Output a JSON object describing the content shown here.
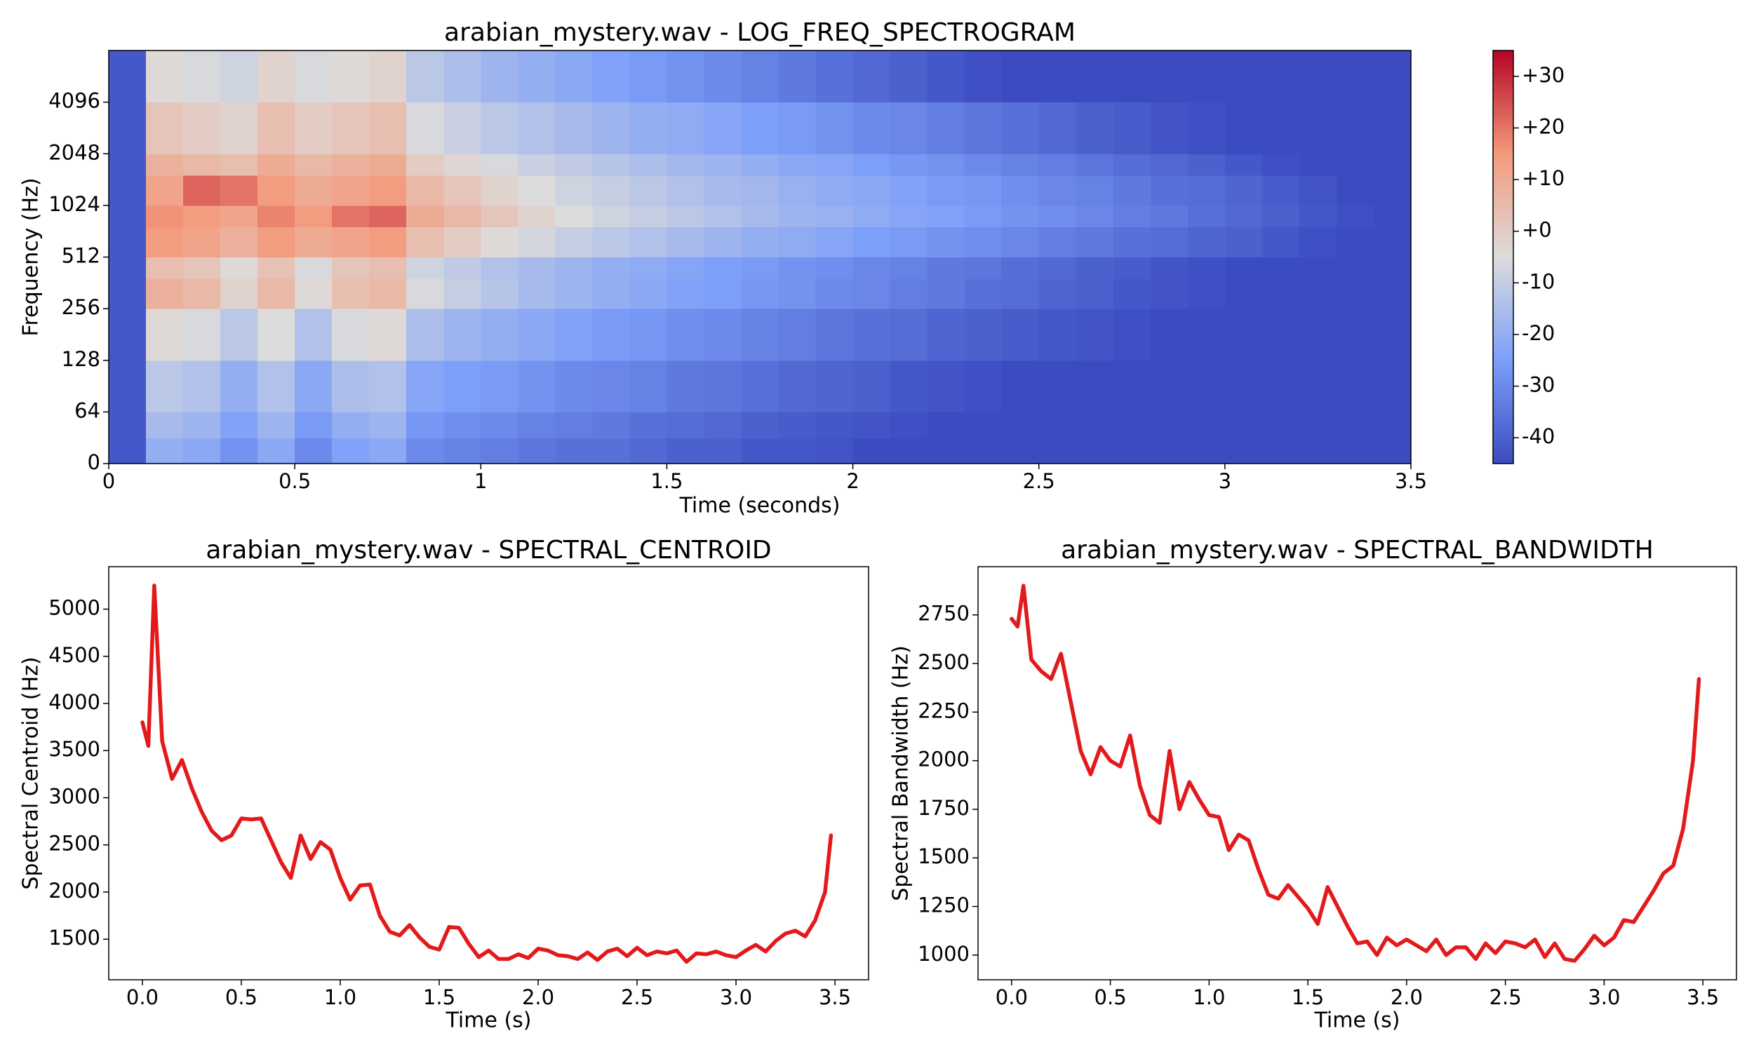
{
  "chart_data": [
    {
      "type": "heatmap",
      "title": "arabian_mystery.wav - LOG_FREQ_SPECTROGRAM",
      "xlabel": "Time (seconds)",
      "ylabel": "Frequency (Hz)",
      "yscale": "symlog",
      "linthresh": 64,
      "colormap": "coolwarm",
      "xlim": [
        0,
        3.5
      ],
      "ylim": [
        0,
        8192
      ],
      "xticks": [
        0,
        0.5,
        1,
        1.5,
        2,
        2.5,
        3,
        3.5
      ],
      "yticks": [
        0,
        64,
        128,
        256,
        512,
        1024,
        2048,
        4096
      ],
      "clim": [
        -45,
        35
      ],
      "cticks": [
        {
          "value": 30,
          "label": "+30"
        },
        {
          "value": 20,
          "label": "+20"
        },
        {
          "value": 10,
          "label": "+10"
        },
        {
          "value": 0,
          "label": "+0"
        },
        -10,
        -20,
        -30,
        -40
      ],
      "x_bins": [
        0,
        0.1,
        0.2,
        0.3,
        0.4,
        0.5,
        0.6,
        0.7,
        0.8,
        0.9,
        1,
        1.1,
        1.2,
        1.3,
        1.4,
        1.5,
        1.6,
        1.7,
        1.8,
        1.9,
        2,
        2.1,
        2.2,
        2.3,
        2.4,
        2.5,
        2.6,
        2.7,
        2.8,
        2.9,
        3,
        3.1,
        3.2,
        3.3,
        3.4,
        3.5
      ],
      "y_bins": [
        0,
        32,
        64,
        128,
        256,
        384,
        512,
        768,
        1024,
        1536,
        2048,
        4096,
        8192
      ],
      "z": [
        [
          -42,
          -20,
          -22,
          -28,
          -22,
          -30,
          -24,
          -22,
          -30,
          -32,
          -33,
          -35,
          -36,
          -36,
          -38,
          -40,
          -40,
          -42,
          -42,
          -43,
          -45,
          -45,
          -45,
          -45,
          -45,
          -45,
          -45,
          -45,
          -45,
          -45,
          -45,
          -45,
          -45,
          -45,
          -45
        ],
        [
          -42,
          -16,
          -18,
          -24,
          -18,
          -26,
          -20,
          -18,
          -27,
          -29,
          -30,
          -32,
          -33,
          -34,
          -36,
          -37,
          -38,
          -40,
          -41,
          -42,
          -43,
          -44,
          -45,
          -45,
          -45,
          -45,
          -45,
          -45,
          -45,
          -45,
          -45,
          -45,
          -45,
          -45,
          -45
        ],
        [
          -42,
          -12,
          -14,
          -20,
          -14,
          -22,
          -15,
          -14,
          -23,
          -25,
          -26,
          -28,
          -30,
          -31,
          -32,
          -34,
          -35,
          -36,
          -38,
          -39,
          -40,
          -42,
          -43,
          -44,
          -45,
          -45,
          -45,
          -45,
          -45,
          -45,
          -45,
          -45,
          -45,
          -45,
          -45
        ],
        [
          -42,
          -4,
          -6,
          -12,
          -5,
          -14,
          -6,
          -4,
          -15,
          -18,
          -20,
          -22,
          -24,
          -26,
          -27,
          -29,
          -30,
          -32,
          -33,
          -35,
          -36,
          -37,
          -39,
          -40,
          -41,
          -42,
          -43,
          -44,
          -45,
          -45,
          -45,
          -45,
          -45,
          -45,
          -45
        ],
        [
          -42,
          8,
          6,
          -2,
          6,
          -4,
          4,
          6,
          -6,
          -10,
          -13,
          -16,
          -18,
          -20,
          -22,
          -24,
          -25,
          -27,
          -28,
          -30,
          -31,
          -33,
          -34,
          -36,
          -37,
          -39,
          -40,
          -42,
          -43,
          -44,
          -45,
          -45,
          -45,
          -45,
          -45
        ],
        [
          -42,
          4,
          2,
          -4,
          3,
          -6,
          2,
          4,
          -8,
          -11,
          -14,
          -16,
          -18,
          -20,
          -21,
          -23,
          -25,
          -26,
          -28,
          -29,
          -31,
          -32,
          -34,
          -35,
          -37,
          -38,
          -40,
          -41,
          -43,
          -44,
          -45,
          -45,
          -45,
          -45,
          -45
        ],
        [
          -42,
          14,
          12,
          8,
          14,
          10,
          12,
          14,
          4,
          0,
          -4,
          -7,
          -10,
          -12,
          -14,
          -16,
          -18,
          -20,
          -21,
          -23,
          -25,
          -26,
          -28,
          -29,
          -31,
          -33,
          -34,
          -36,
          -37,
          -39,
          -40,
          -42,
          -44,
          -45,
          -45
        ],
        [
          -42,
          16,
          14,
          12,
          18,
          14,
          20,
          22,
          10,
          6,
          2,
          -2,
          -5,
          -8,
          -10,
          -12,
          -14,
          -16,
          -18,
          -19,
          -21,
          -23,
          -24,
          -26,
          -28,
          -29,
          -31,
          -33,
          -34,
          -36,
          -38,
          -40,
          -42,
          -44,
          -45
        ],
        [
          -42,
          12,
          22,
          20,
          14,
          10,
          12,
          14,
          6,
          2,
          -2,
          -5,
          -8,
          -10,
          -12,
          -14,
          -16,
          -17,
          -19,
          -21,
          -22,
          -24,
          -26,
          -27,
          -29,
          -31,
          -32,
          -34,
          -36,
          -37,
          -39,
          -41,
          -43,
          -45,
          -45
        ],
        [
          -42,
          8,
          6,
          4,
          10,
          6,
          8,
          10,
          0,
          -3,
          -6,
          -9,
          -11,
          -13,
          -15,
          -17,
          -18,
          -20,
          -22,
          -23,
          -25,
          -27,
          -28,
          -30,
          -32,
          -33,
          -35,
          -37,
          -38,
          -40,
          -42,
          -44,
          -45,
          -45,
          -45
        ],
        [
          -42,
          2,
          0,
          -2,
          4,
          0,
          2,
          4,
          -6,
          -9,
          -12,
          -14,
          -16,
          -18,
          -20,
          -21,
          -23,
          -25,
          -26,
          -28,
          -30,
          -31,
          -33,
          -35,
          -36,
          -38,
          -40,
          -41,
          -43,
          -44,
          -45,
          -45,
          -45,
          -45,
          -45
        ],
        [
          -42,
          -4,
          -6,
          -8,
          -2,
          -6,
          -4,
          -2,
          -12,
          -15,
          -18,
          -20,
          -22,
          -24,
          -26,
          -28,
          -30,
          -32,
          -34,
          -36,
          -38,
          -40,
          -42,
          -44,
          -45,
          -45,
          -45,
          -45,
          -45,
          -45,
          -45,
          -45,
          -45,
          -45,
          -45
        ]
      ]
    },
    {
      "type": "line",
      "title": "arabian_mystery.wav - SPECTRAL_CENTROID",
      "xlabel": "Time (s)",
      "ylabel": "Spectral Centroid (Hz)",
      "color": "#e31a1c",
      "xlim": [
        -0.17,
        3.67
      ],
      "ylim": [
        1070,
        5450
      ],
      "xticks": [
        {
          "value": 0,
          "label": "0.0"
        },
        0.5,
        {
          "value": 1,
          "label": "1.0"
        },
        1.5,
        {
          "value": 2,
          "label": "2.0"
        },
        2.5,
        {
          "value": 3,
          "label": "3.0"
        },
        3.5
      ],
      "yticks": [
        1500,
        2000,
        2500,
        3000,
        3500,
        4000,
        4500,
        5000
      ],
      "x": [
        0,
        0.03,
        0.06,
        0.1,
        0.15,
        0.2,
        0.25,
        0.3,
        0.35,
        0.4,
        0.45,
        0.5,
        0.55,
        0.6,
        0.65,
        0.7,
        0.75,
        0.8,
        0.85,
        0.9,
        0.95,
        1,
        1.05,
        1.1,
        1.15,
        1.2,
        1.25,
        1.3,
        1.35,
        1.4,
        1.45,
        1.5,
        1.55,
        1.6,
        1.65,
        1.7,
        1.75,
        1.8,
        1.85,
        1.9,
        1.95,
        2,
        2.05,
        2.1,
        2.15,
        2.2,
        2.25,
        2.3,
        2.35,
        2.4,
        2.45,
        2.5,
        2.55,
        2.6,
        2.65,
        2.7,
        2.75,
        2.8,
        2.85,
        2.9,
        2.95,
        3,
        3.05,
        3.1,
        3.15,
        3.2,
        3.25,
        3.3,
        3.35,
        3.4,
        3.45,
        3.48
      ],
      "values": [
        3800,
        3550,
        5250,
        3600,
        3200,
        3400,
        3100,
        2850,
        2650,
        2550,
        2600,
        2780,
        2770,
        2780,
        2550,
        2320,
        2150,
        2600,
        2350,
        2530,
        2450,
        2150,
        1920,
        2070,
        2080,
        1750,
        1580,
        1540,
        1650,
        1520,
        1420,
        1390,
        1630,
        1620,
        1450,
        1310,
        1380,
        1290,
        1290,
        1340,
        1300,
        1400,
        1380,
        1330,
        1320,
        1290,
        1360,
        1280,
        1370,
        1400,
        1320,
        1410,
        1330,
        1370,
        1350,
        1380,
        1260,
        1350,
        1340,
        1370,
        1330,
        1310,
        1380,
        1440,
        1370,
        1480,
        1560,
        1590,
        1530,
        1700,
        2000,
        2600
      ]
    },
    {
      "type": "line",
      "title": "arabian_mystery.wav - SPECTRAL_BANDWIDTH",
      "xlabel": "Time (s)",
      "ylabel": "Spectral Bandwidth (Hz)",
      "color": "#e31a1c",
      "xlim": [
        -0.17,
        3.67
      ],
      "ylim": [
        873,
        2998
      ],
      "xticks": [
        {
          "value": 0,
          "label": "0.0"
        },
        0.5,
        {
          "value": 1,
          "label": "1.0"
        },
        1.5,
        {
          "value": 2,
          "label": "2.0"
        },
        2.5,
        {
          "value": 3,
          "label": "3.0"
        },
        3.5
      ],
      "yticks": [
        1000,
        1250,
        1500,
        1750,
        2000,
        2250,
        2500,
        2750
      ],
      "x": [
        0,
        0.03,
        0.06,
        0.1,
        0.15,
        0.2,
        0.25,
        0.3,
        0.35,
        0.4,
        0.45,
        0.5,
        0.55,
        0.6,
        0.65,
        0.7,
        0.75,
        0.8,
        0.85,
        0.9,
        0.95,
        1,
        1.05,
        1.1,
        1.15,
        1.2,
        1.25,
        1.3,
        1.35,
        1.4,
        1.45,
        1.5,
        1.55,
        1.6,
        1.65,
        1.7,
        1.75,
        1.8,
        1.85,
        1.9,
        1.95,
        2,
        2.05,
        2.1,
        2.15,
        2.2,
        2.25,
        2.3,
        2.35,
        2.4,
        2.45,
        2.5,
        2.55,
        2.6,
        2.65,
        2.7,
        2.75,
        2.8,
        2.85,
        2.9,
        2.95,
        3,
        3.05,
        3.1,
        3.15,
        3.2,
        3.25,
        3.3,
        3.35,
        3.4,
        3.45,
        3.48
      ],
      "values": [
        2730,
        2690,
        2900,
        2520,
        2460,
        2420,
        2550,
        2300,
        2050,
        1930,
        2070,
        2000,
        1970,
        2130,
        1870,
        1720,
        1680,
        2050,
        1750,
        1890,
        1800,
        1720,
        1710,
        1540,
        1620,
        1590,
        1440,
        1310,
        1290,
        1360,
        1300,
        1240,
        1160,
        1350,
        1250,
        1150,
        1060,
        1070,
        1000,
        1090,
        1050,
        1080,
        1050,
        1020,
        1080,
        1000,
        1040,
        1040,
        980,
        1060,
        1010,
        1070,
        1060,
        1040,
        1080,
        990,
        1060,
        980,
        970,
        1030,
        1100,
        1050,
        1090,
        1180,
        1170,
        1250,
        1330,
        1420,
        1460,
        1650,
        2000,
        2420
      ]
    }
  ]
}
